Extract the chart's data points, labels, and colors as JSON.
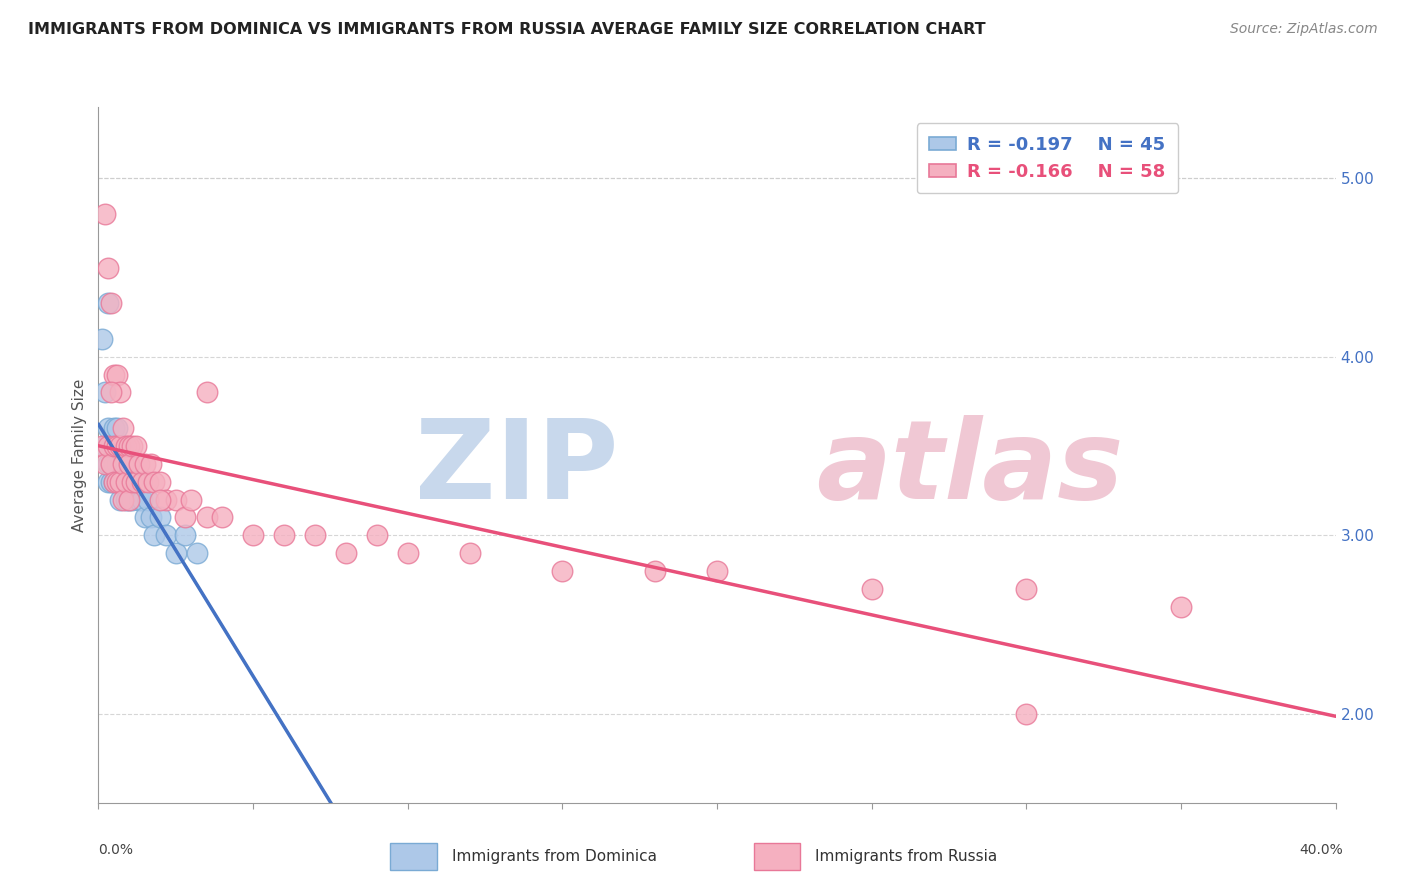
{
  "title": "IMMIGRANTS FROM DOMINICA VS IMMIGRANTS FROM RUSSIA AVERAGE FAMILY SIZE CORRELATION CHART",
  "source": "Source: ZipAtlas.com",
  "ylabel": "Average Family Size",
  "right_yticks": [
    2.0,
    3.0,
    4.0,
    5.0
  ],
  "right_ytick_labels": [
    "2.00",
    "3.00",
    "4.00",
    "5.00"
  ],
  "xlim": [
    0.0,
    0.4
  ],
  "ylim": [
    1.5,
    5.4
  ],
  "dominica_color": "#adc8e8",
  "dominica_edge": "#7aaad4",
  "russia_color": "#f5b0c0",
  "russia_edge": "#e87898",
  "dominica_line_color": "#4472c4",
  "russia_line_color": "#e8507a",
  "legend_r_dominica": "R = -0.197",
  "legend_n_dominica": "N = 45",
  "legend_r_russia": "R = -0.166",
  "legend_n_russia": "N = 58",
  "grid_color": "#cccccc",
  "bg_color": "#ffffff",
  "title_color": "#333333",
  "right_axis_color": "#4472c4",
  "watermark_zip_color": "#c8d8ec",
  "watermark_atlas_color": "#f0c8d4",
  "dominica_x": [
    0.001,
    0.002,
    0.002,
    0.003,
    0.003,
    0.003,
    0.004,
    0.004,
    0.004,
    0.005,
    0.005,
    0.005,
    0.005,
    0.006,
    0.006,
    0.006,
    0.006,
    0.007,
    0.007,
    0.007,
    0.007,
    0.008,
    0.008,
    0.008,
    0.009,
    0.009,
    0.009,
    0.01,
    0.01,
    0.01,
    0.011,
    0.011,
    0.012,
    0.013,
    0.014,
    0.015,
    0.016,
    0.017,
    0.018,
    0.02,
    0.022,
    0.025,
    0.028,
    0.032,
    0.003
  ],
  "dominica_y": [
    4.1,
    3.8,
    3.5,
    3.6,
    3.4,
    3.3,
    3.5,
    3.4,
    3.3,
    3.6,
    3.5,
    3.4,
    3.3,
    3.6,
    3.5,
    3.4,
    3.3,
    3.5,
    3.4,
    3.3,
    3.2,
    3.5,
    3.4,
    3.3,
    3.4,
    3.3,
    3.2,
    3.4,
    3.3,
    3.2,
    3.3,
    3.2,
    3.3,
    3.2,
    3.2,
    3.1,
    3.2,
    3.1,
    3.0,
    3.1,
    3.0,
    2.9,
    3.0,
    2.9,
    4.3
  ],
  "russia_x": [
    0.001,
    0.002,
    0.002,
    0.003,
    0.003,
    0.004,
    0.004,
    0.005,
    0.005,
    0.005,
    0.006,
    0.006,
    0.006,
    0.007,
    0.007,
    0.007,
    0.008,
    0.008,
    0.008,
    0.009,
    0.009,
    0.01,
    0.01,
    0.01,
    0.011,
    0.011,
    0.012,
    0.012,
    0.013,
    0.014,
    0.015,
    0.016,
    0.017,
    0.018,
    0.02,
    0.022,
    0.025,
    0.028,
    0.03,
    0.035,
    0.04,
    0.05,
    0.06,
    0.07,
    0.08,
    0.09,
    0.1,
    0.12,
    0.15,
    0.18,
    0.2,
    0.25,
    0.3,
    0.35,
    0.004,
    0.02,
    0.035,
    0.3
  ],
  "russia_y": [
    3.5,
    4.8,
    3.4,
    4.5,
    3.5,
    4.3,
    3.4,
    3.9,
    3.5,
    3.3,
    3.9,
    3.5,
    3.3,
    3.8,
    3.5,
    3.3,
    3.6,
    3.4,
    3.2,
    3.5,
    3.3,
    3.5,
    3.4,
    3.2,
    3.5,
    3.3,
    3.5,
    3.3,
    3.4,
    3.3,
    3.4,
    3.3,
    3.4,
    3.3,
    3.3,
    3.2,
    3.2,
    3.1,
    3.2,
    3.1,
    3.1,
    3.0,
    3.0,
    3.0,
    2.9,
    3.0,
    2.9,
    2.9,
    2.8,
    2.8,
    2.8,
    2.7,
    2.7,
    2.6,
    3.8,
    3.2,
    3.8,
    2.0
  ]
}
